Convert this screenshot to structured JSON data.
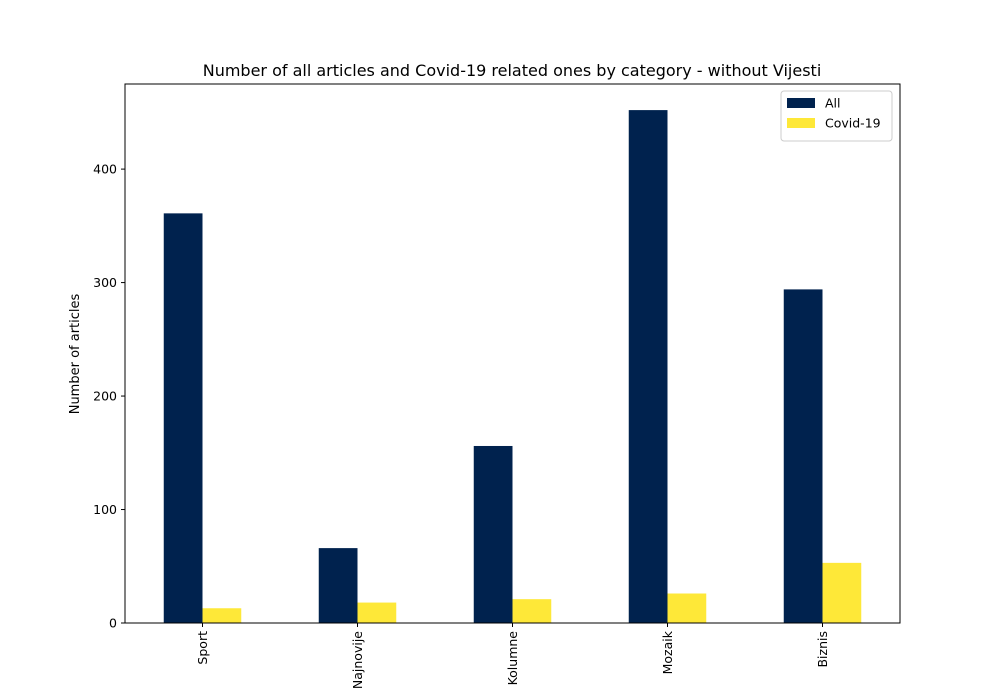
{
  "chart_data": {
    "type": "bar",
    "title": "Number of all articles and Covid-19 related ones by category - without Vijesti",
    "xlabel": "",
    "ylabel": "Number of articles",
    "categories": [
      "Sport",
      "Najnovije",
      "Kolumne",
      "Mozaik",
      "Biznis"
    ],
    "series": [
      {
        "name": "All",
        "values": [
          361,
          66,
          156,
          452,
          294
        ],
        "color": "#00224e"
      },
      {
        "name": "Covid-19",
        "values": [
          13,
          18,
          21,
          26,
          53
        ],
        "color": "#fee838"
      }
    ],
    "ylim": [
      0,
      475
    ],
    "yticks": [
      0,
      100,
      200,
      300,
      400
    ],
    "grid": false,
    "legend_position": "top-right"
  }
}
